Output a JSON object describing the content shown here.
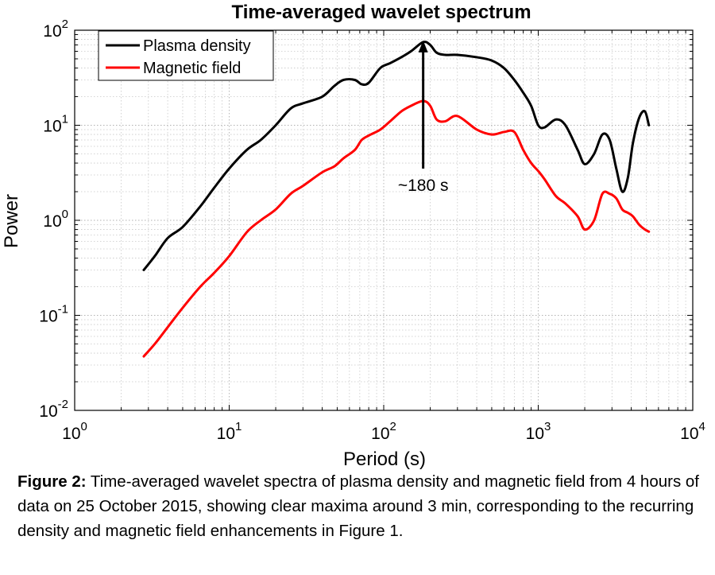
{
  "chart_data": {
    "type": "line",
    "title": "Time-averaged wavelet spectrum",
    "xlabel": "Period (s)",
    "ylabel": "Power",
    "xscale": "log",
    "yscale": "log",
    "xlim": [
      1,
      10000
    ],
    "ylim": [
      0.01,
      100
    ],
    "grid": true,
    "legend_position": "top-left",
    "x_ticks": [
      {
        "value": 1,
        "base": "10",
        "exp": "0"
      },
      {
        "value": 10,
        "base": "10",
        "exp": "1"
      },
      {
        "value": 100,
        "base": "10",
        "exp": "2"
      },
      {
        "value": 1000,
        "base": "10",
        "exp": "3"
      },
      {
        "value": 10000,
        "base": "10",
        "exp": "4"
      }
    ],
    "y_ticks": [
      {
        "value": 0.01,
        "base": "10",
        "exp": "-2"
      },
      {
        "value": 0.1,
        "base": "10",
        "exp": "-1"
      },
      {
        "value": 1,
        "base": "10",
        "exp": "0"
      },
      {
        "value": 10,
        "base": "10",
        "exp": "1"
      },
      {
        "value": 100,
        "base": "10",
        "exp": "2"
      }
    ],
    "annotation": {
      "text": "~180 s",
      "x": 180,
      "y_from": 3.5,
      "y_to": 75
    },
    "series": [
      {
        "name": "Plasma density",
        "color": "#000000",
        "x": [
          2.8,
          3.3,
          4.0,
          5.0,
          6.5,
          8.0,
          10,
          13,
          16,
          20,
          25,
          30,
          40,
          48,
          55,
          65,
          72,
          80,
          95,
          110,
          130,
          150,
          180,
          200,
          220,
          250,
          300,
          400,
          500,
          600,
          700,
          800,
          900,
          1000,
          1100,
          1300,
          1500,
          1800,
          2000,
          2300,
          2600,
          2900,
          3200,
          3500,
          3800,
          4100,
          4500,
          4900,
          5200
        ],
        "y": [
          0.3,
          0.42,
          0.65,
          0.85,
          1.4,
          2.2,
          3.5,
          5.5,
          7.0,
          10,
          15,
          17,
          20,
          26,
          30,
          30,
          27,
          28,
          40,
          45,
          52,
          60,
          75,
          70,
          58,
          55,
          55,
          52,
          48,
          40,
          30,
          22,
          16,
          10,
          9.5,
          11.5,
          10,
          5.5,
          3.9,
          5.0,
          8.0,
          7.0,
          3.5,
          2.0,
          2.8,
          6.5,
          12,
          14,
          10
        ]
      },
      {
        "name": "Magnetic field",
        "color": "#ff0000",
        "x": [
          2.8,
          3.3,
          4.0,
          5.0,
          6.5,
          8.0,
          10,
          13,
          16,
          20,
          25,
          30,
          40,
          48,
          55,
          65,
          72,
          80,
          95,
          110,
          130,
          150,
          180,
          200,
          220,
          250,
          300,
          400,
          500,
          600,
          700,
          800,
          900,
          1000,
          1100,
          1300,
          1500,
          1800,
          2000,
          2300,
          2600,
          2900,
          3200,
          3500,
          3800,
          4100,
          4500,
          4900,
          5200
        ],
        "y": [
          0.037,
          0.05,
          0.075,
          0.12,
          0.2,
          0.28,
          0.42,
          0.75,
          1.0,
          1.3,
          1.9,
          2.3,
          3.2,
          3.7,
          4.5,
          5.5,
          7.0,
          7.8,
          9.0,
          11,
          14,
          16,
          18,
          16,
          11.5,
          11,
          12.5,
          9.0,
          8.0,
          8.5,
          8.5,
          5.5,
          4.0,
          3.3,
          2.7,
          1.8,
          1.5,
          1.1,
          0.8,
          1.0,
          1.9,
          1.9,
          1.7,
          1.3,
          1.2,
          1.1,
          0.9,
          0.8,
          0.76
        ]
      }
    ]
  },
  "caption": {
    "label": "Figure 2:",
    "text": " Time-averaged wavelet spectra of plasma density and magnetic field from 4 hours of data on 25 October 2015, showing clear maxima around 3 min, corresponding to the recurring density and magnetic field enhancements in Figure 1."
  }
}
